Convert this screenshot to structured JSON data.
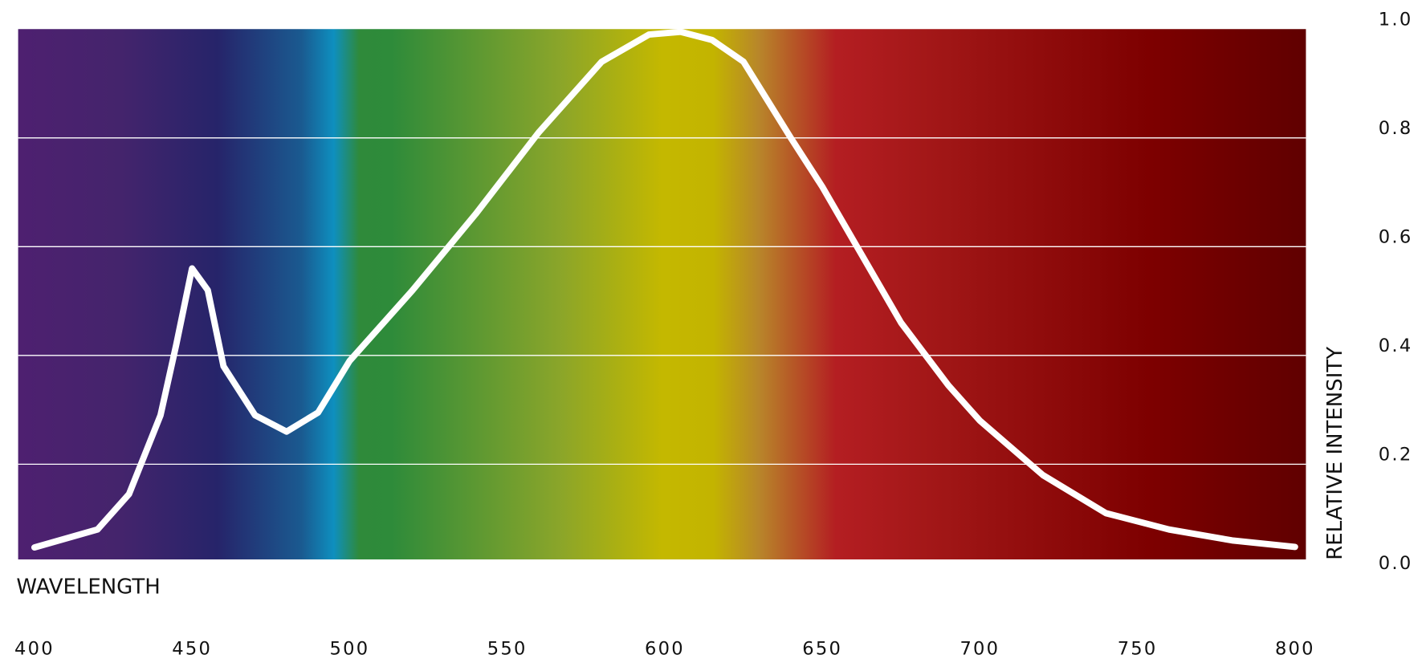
{
  "chart_data": {
    "type": "line",
    "x_label": "WAVELENGTH",
    "y_label": "RELATIVE INTENSITY",
    "x": [
      400,
      420,
      430,
      440,
      445,
      450,
      455,
      460,
      470,
      480,
      490,
      500,
      520,
      540,
      560,
      580,
      595,
      605,
      615,
      625,
      640,
      650,
      660,
      675,
      690,
      700,
      720,
      740,
      760,
      780,
      800
    ],
    "values": [
      0.047,
      0.08,
      0.145,
      0.29,
      0.42,
      0.56,
      0.52,
      0.38,
      0.29,
      0.26,
      0.295,
      0.39,
      0.52,
      0.66,
      0.81,
      0.94,
      0.99,
      0.995,
      0.98,
      0.94,
      0.8,
      0.71,
      0.61,
      0.46,
      0.345,
      0.28,
      0.18,
      0.11,
      0.08,
      0.06,
      0.048
    ],
    "color": "#ffffff",
    "xlim": [
      400,
      800
    ],
    "xticks": [
      400,
      450,
      500,
      550,
      600,
      650,
      700,
      750,
      800
    ],
    "ylim": [
      0,
      1
    ],
    "yticks": [
      {
        "value": 0,
        "label": "0.0"
      },
      0.2,
      0.4,
      0.6,
      0.8,
      {
        "value": 1,
        "label": "1.0"
      }
    ],
    "grid": true
  }
}
